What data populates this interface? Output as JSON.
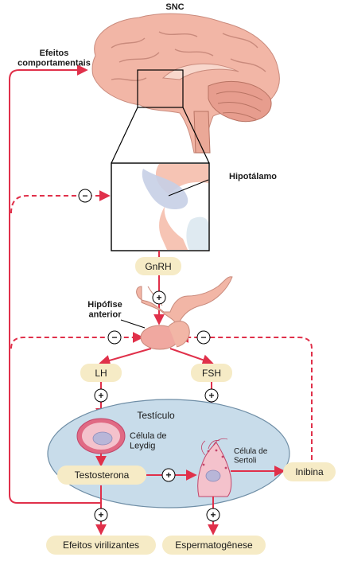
{
  "labels": {
    "cns": "SNC",
    "behavioral_effects": "Efeitos\ncomportamentais",
    "hypothalamus": "Hipotálamo",
    "gnrh": "GnRH",
    "anterior_pituitary": "Hipófise\nanterior",
    "lh": "LH",
    "fsh": "FSH",
    "testis": "Testículo",
    "leydig_cell": "Célula de\nLeydig",
    "sertoli_cell": "Célula de\nSertoli",
    "testosterone": "Testosterona",
    "inhibin": "Inibina",
    "virilizing_effects": "Efeitos virilizantes",
    "spermatogenesis": "Espermatogênese"
  },
  "signs": {
    "plus": "+",
    "minus": "−"
  },
  "colors": {
    "arrow_red": "#e0304a",
    "label_box": "#f6ebc6",
    "testis_fill": "#c8dcea",
    "brain_fill": "#f2b6a6",
    "cell_pink": "#f4c2cc"
  }
}
